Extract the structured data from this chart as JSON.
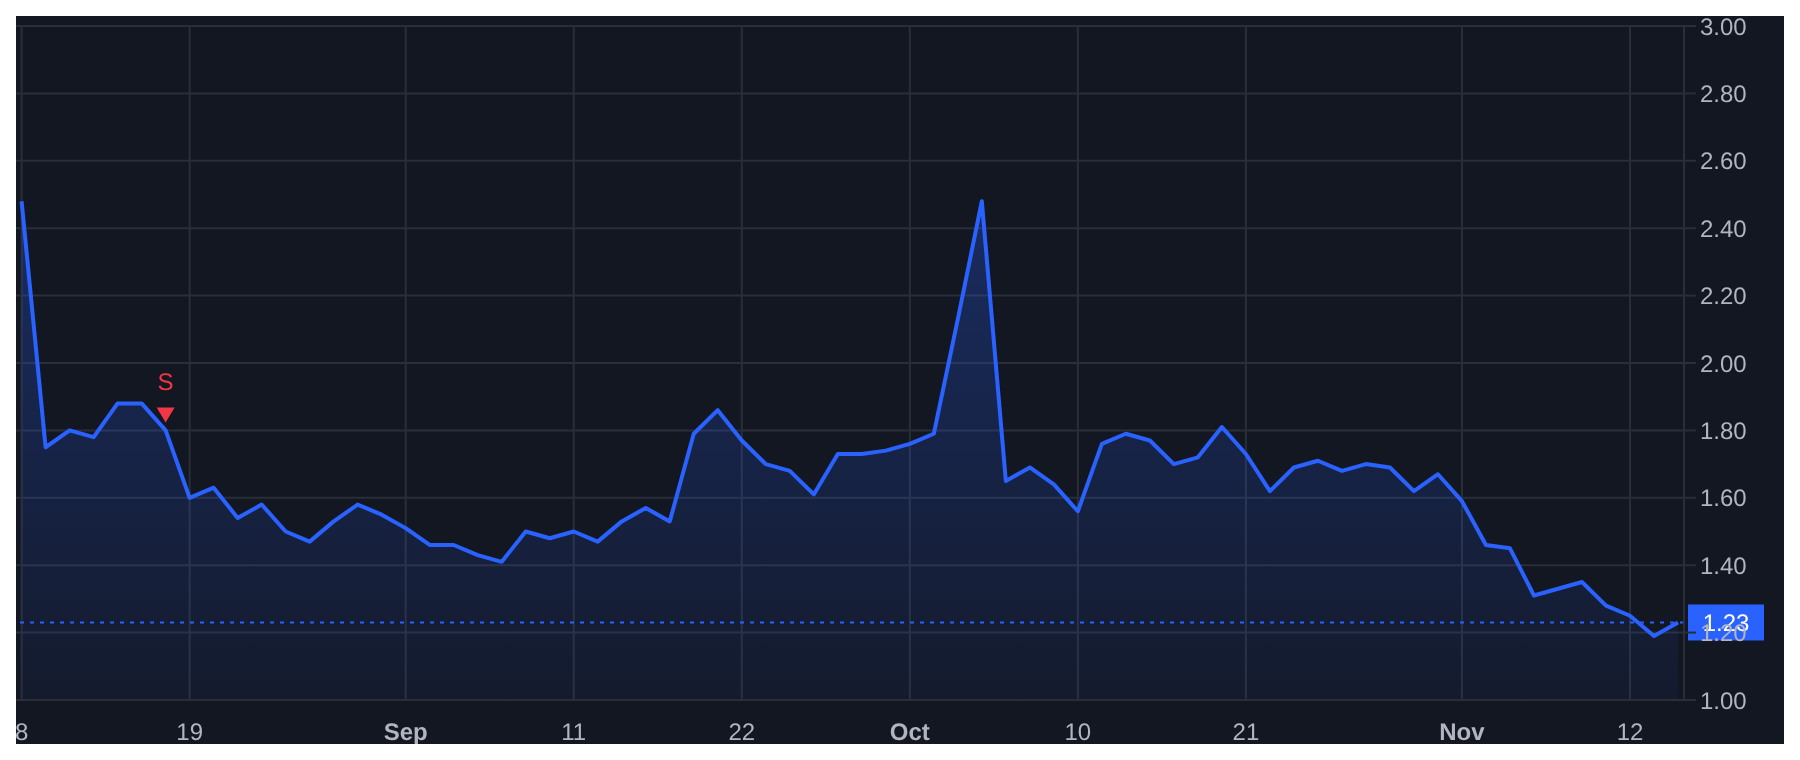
{
  "chart_data": {
    "type": "area",
    "categories": [
      "8",
      null,
      null,
      null,
      null,
      null,
      null,
      "19",
      null,
      null,
      null,
      null,
      null,
      null,
      null,
      null,
      "Sep",
      null,
      null,
      null,
      null,
      null,
      null,
      "11",
      null,
      null,
      null,
      null,
      null,
      null,
      "22",
      null,
      null,
      null,
      null,
      null,
      null,
      "Oct",
      null,
      null,
      null,
      null,
      null,
      null,
      "10",
      null,
      null,
      null,
      null,
      null,
      null,
      "21",
      null,
      null,
      null,
      null,
      null,
      null,
      null,
      null,
      "Nov",
      null,
      null,
      null,
      null,
      null,
      null,
      "12",
      null,
      null
    ],
    "series": [
      {
        "color": "#2962ff",
        "values": [
          2.48,
          1.75,
          1.8,
          1.78,
          1.88,
          1.88,
          1.8,
          1.6,
          1.63,
          1.54,
          1.58,
          1.5,
          1.47,
          1.53,
          1.58,
          1.55,
          1.51,
          1.46,
          1.46,
          1.43,
          1.41,
          1.5,
          1.48,
          1.5,
          1.47,
          1.53,
          1.57,
          1.53,
          1.79,
          1.86,
          1.77,
          1.7,
          1.68,
          1.61,
          1.73,
          1.73,
          1.74,
          1.76,
          1.79,
          2.13,
          2.48,
          1.65,
          1.69,
          1.64,
          1.56,
          1.76,
          1.79,
          1.77,
          1.7,
          1.72,
          1.81,
          1.73,
          1.62,
          1.69,
          1.71,
          1.68,
          1.7,
          1.69,
          1.62,
          1.67,
          1.59,
          1.46,
          1.45,
          1.31,
          1.33,
          1.35,
          1.28,
          1.25,
          1.19,
          1.23
        ]
      },
      {
        "type": "scatter",
        "color": "#f23645",
        "marker": "triangle",
        "values": [
          null,
          null,
          null,
          null,
          null,
          null,
          1.85,
          null,
          null,
          null,
          null,
          null,
          null,
          null,
          null,
          null,
          null,
          null,
          null,
          null,
          null,
          null,
          null,
          null,
          null,
          null,
          null,
          null,
          null,
          null,
          null,
          null,
          null,
          null,
          null,
          null,
          null,
          null,
          null,
          null,
          null,
          null,
          null,
          null,
          null,
          null,
          null,
          null,
          null,
          null,
          null,
          null,
          null,
          null,
          null,
          null,
          null,
          null,
          null,
          null,
          null,
          null,
          null,
          null,
          null,
          null,
          null,
          null,
          null,
          null
        ],
        "value_labels": [
          null,
          null,
          null,
          null,
          null,
          null,
          "S",
          null,
          null,
          null,
          null,
          null,
          null,
          null,
          null,
          null,
          null,
          null,
          null,
          null,
          null,
          null,
          null,
          null,
          null,
          null,
          null,
          null,
          null,
          null,
          null,
          null,
          null,
          null,
          null,
          null,
          null,
          null,
          null,
          null,
          null,
          null,
          null,
          null,
          null,
          null,
          null,
          null,
          null,
          null,
          null,
          null,
          null,
          null,
          null,
          null,
          null,
          null,
          null,
          null,
          null,
          null,
          null,
          null,
          null,
          null,
          null,
          null,
          null,
          null
        ]
      }
    ],
    "ylim": [
      1,
      3
    ],
    "yticks": [
      {
        "value": 1,
        "label": "1.00"
      },
      {
        "value": 1.2,
        "label": "1.20"
      },
      {
        "value": 1.4,
        "label": "1.40"
      },
      {
        "value": 1.6,
        "label": "1.60"
      },
      {
        "value": 1.8,
        "label": "1.80"
      },
      {
        "value": 2,
        "label": "2.00"
      },
      {
        "value": 2.2,
        "label": "2.20"
      },
      {
        "value": 2.4,
        "label": "2.40"
      },
      {
        "value": 2.6,
        "label": "2.60"
      },
      {
        "value": 2.8,
        "label": "2.80"
      },
      {
        "value": 3,
        "label": "3.00"
      }
    ],
    "ref_lines": [
      {
        "axis": "y",
        "value": 1.23,
        "label": "1.23",
        "color": "#2962ff",
        "line_style": "dotted"
      }
    ],
    "grid": true,
    "legend": false
  }
}
